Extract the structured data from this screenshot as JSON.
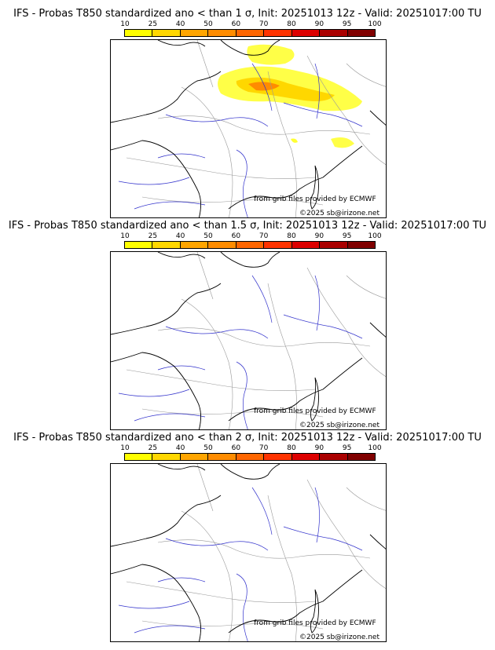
{
  "colorbar": {
    "ticks": [
      "10",
      "25",
      "40",
      "50",
      "60",
      "70",
      "80",
      "90",
      "95",
      "100"
    ],
    "colors": [
      "#ffff00",
      "#ffd700",
      "#ffa500",
      "#ff8c00",
      "#ff6600",
      "#ff3300",
      "#dd0000",
      "#aa0000",
      "#800000"
    ]
  },
  "credits": {
    "source": "from grib files provided by ECMWF",
    "copyright": "©2025 sb@irizone.net"
  },
  "panels": [
    {
      "title": "IFS - Probas T850  standardized ano < than 1 σ, Init: 20251013 12z - Valid: 20251017:00 TU"
    },
    {
      "title": "IFS - Probas T850  standardized ano < than 1.5 σ, Init: 20251013 12z - Valid: 20251017:00 TU"
    },
    {
      "title": "IFS - Probas T850  standardized ano < than 2 σ, Init: 20251013 12z - Valid: 20251017:00 TU"
    }
  ],
  "colors": {
    "coast": "#000000",
    "borders": "#999999",
    "rivers": "#3333cc"
  }
}
